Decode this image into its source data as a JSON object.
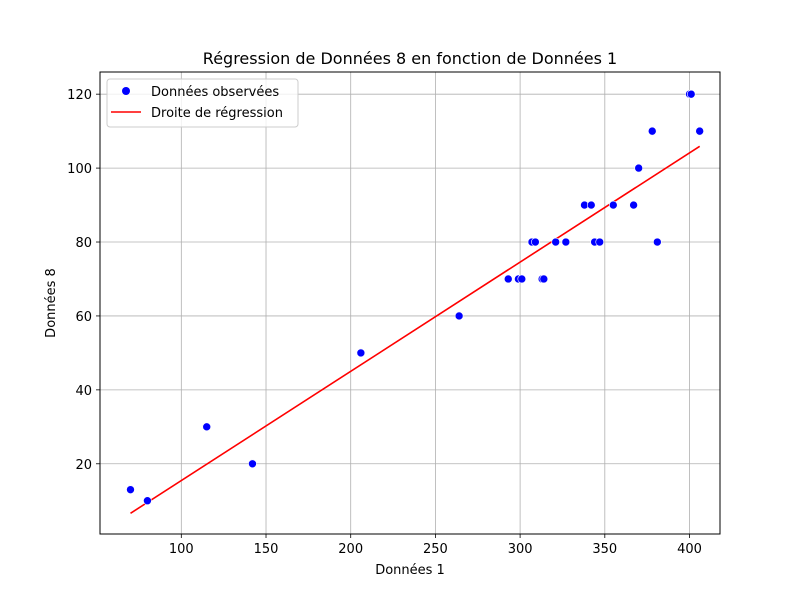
{
  "chart_data": {
    "type": "scatter",
    "title": "Régression de Données 8 en fonction de Données 1",
    "xlabel": "Données 1",
    "ylabel": "Données 8",
    "xlim": [
      52,
      418
    ],
    "ylim": [
      1,
      126
    ],
    "xticks": [
      100,
      150,
      200,
      250,
      300,
      350,
      400
    ],
    "yticks": [
      20,
      40,
      60,
      80,
      100,
      120
    ],
    "grid": true,
    "legend_position": "top-left",
    "series": [
      {
        "name": "Données observées",
        "kind": "scatter",
        "color": "#0000ff",
        "points": [
          [
            70,
            13
          ],
          [
            80,
            10
          ],
          [
            115,
            30
          ],
          [
            142,
            20
          ],
          [
            206,
            50
          ],
          [
            264,
            60
          ],
          [
            293,
            70
          ],
          [
            299,
            70
          ],
          [
            301,
            70
          ],
          [
            307,
            80
          ],
          [
            309,
            80
          ],
          [
            313,
            70
          ],
          [
            314,
            70
          ],
          [
            321,
            80
          ],
          [
            327,
            80
          ],
          [
            338,
            90
          ],
          [
            342,
            90
          ],
          [
            344,
            80
          ],
          [
            347,
            80
          ],
          [
            355,
            90
          ],
          [
            367,
            90
          ],
          [
            370,
            100
          ],
          [
            378,
            110
          ],
          [
            381,
            80
          ],
          [
            400,
            120
          ],
          [
            401,
            120
          ],
          [
            406,
            110
          ]
        ]
      },
      {
        "name": "Droite de régression",
        "kind": "line",
        "color": "#ff0000",
        "points": [
          [
            70,
            6.6
          ],
          [
            406,
            105.9
          ]
        ]
      }
    ]
  }
}
